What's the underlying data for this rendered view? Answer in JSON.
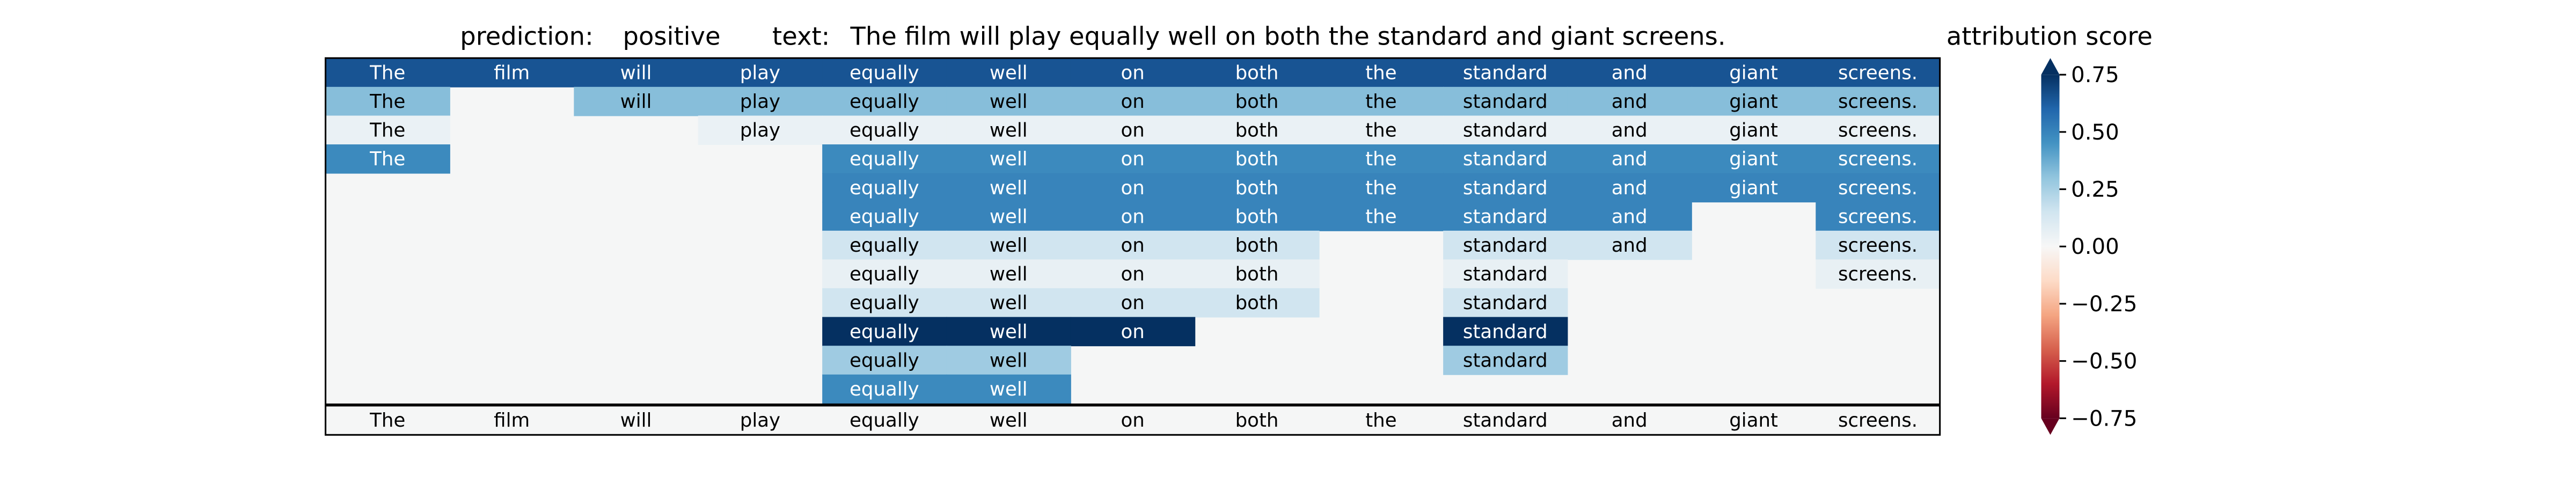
{
  "header": {
    "prediction_label": "prediction:",
    "prediction_value": "positive",
    "text_label": "text:",
    "text_value": "The film will play equally well on both the standard and giant screens."
  },
  "colorbar": {
    "title": "attribution score",
    "ticks": [
      "0.75",
      "0.50",
      "0.25",
      "0.00",
      "−0.25",
      "−0.50",
      "−0.75"
    ],
    "range": [
      -0.75,
      0.75
    ],
    "extend": "both",
    "colormap": "RdBu"
  },
  "chart_data": {
    "type": "heatmap",
    "tokens": [
      "The",
      "film",
      "will",
      "play",
      "equally",
      "well",
      "on",
      "both",
      "the",
      "standard",
      "and",
      "giant",
      "screens."
    ],
    "footer_tokens": [
      "The",
      "film",
      "will",
      "play",
      "equally",
      "well",
      "on",
      "both",
      "the",
      "standard",
      "and",
      "giant",
      "screens."
    ],
    "rows": [
      [
        0.65,
        0.65,
        0.65,
        0.65,
        0.65,
        0.65,
        0.65,
        0.65,
        0.65,
        0.65,
        0.65,
        0.65,
        0.65
      ],
      [
        0.32,
        null,
        0.32,
        0.32,
        0.32,
        0.32,
        0.32,
        0.32,
        0.32,
        0.32,
        0.32,
        0.32,
        0.32
      ],
      [
        0.05,
        null,
        null,
        0.05,
        0.05,
        0.05,
        0.05,
        0.05,
        0.05,
        0.05,
        0.05,
        0.05,
        0.05
      ],
      [
        0.48,
        null,
        null,
        null,
        0.48,
        0.48,
        0.48,
        0.48,
        0.48,
        0.48,
        0.48,
        0.48,
        0.48
      ],
      [
        null,
        null,
        null,
        null,
        0.5,
        0.5,
        0.5,
        0.5,
        0.5,
        0.5,
        0.5,
        0.5,
        0.5
      ],
      [
        null,
        null,
        null,
        null,
        0.5,
        0.5,
        0.5,
        0.5,
        0.5,
        0.5,
        0.5,
        null,
        0.5
      ],
      [
        null,
        null,
        null,
        null,
        0.15,
        0.15,
        0.15,
        0.15,
        null,
        0.15,
        0.15,
        null,
        0.15
      ],
      [
        null,
        null,
        null,
        null,
        0.06,
        0.06,
        0.06,
        0.06,
        null,
        0.06,
        null,
        null,
        0.06
      ],
      [
        null,
        null,
        null,
        null,
        0.15,
        0.15,
        0.15,
        0.15,
        null,
        0.15,
        null,
        null,
        null
      ],
      [
        null,
        null,
        null,
        null,
        0.78,
        0.78,
        0.78,
        null,
        null,
        0.78,
        null,
        null,
        null
      ],
      [
        null,
        null,
        null,
        null,
        0.27,
        0.27,
        null,
        null,
        null,
        0.27,
        null,
        null,
        null
      ],
      [
        null,
        null,
        null,
        null,
        0.48,
        0.48,
        null,
        null,
        null,
        null,
        null,
        null,
        null
      ]
    ],
    "cmin": -0.75,
    "cmax": 0.75
  }
}
